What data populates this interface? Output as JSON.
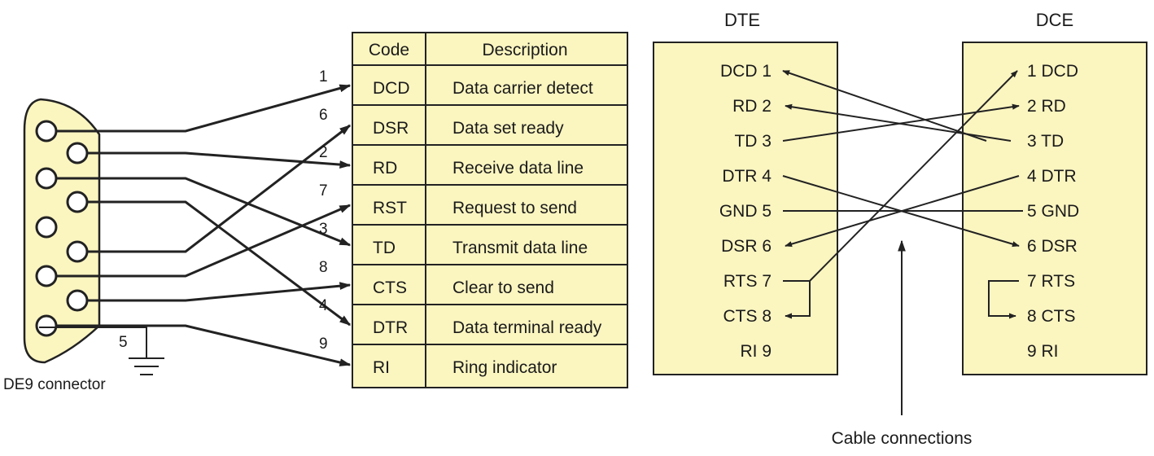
{
  "connector": {
    "label": "DE9 connector",
    "ground_pin": "5",
    "wire_numbers": [
      "1",
      "6",
      "2",
      "7",
      "3",
      "8",
      "4",
      "9"
    ]
  },
  "table": {
    "headers": {
      "code": "Code",
      "description": "Description"
    },
    "rows": [
      {
        "code": "DCD",
        "description": "Data carrier detect"
      },
      {
        "code": "DSR",
        "description": "Data set ready"
      },
      {
        "code": "RD",
        "description": "Receive data line"
      },
      {
        "code": "RST",
        "description": "Request to send"
      },
      {
        "code": "TD",
        "description": "Transmit data line"
      },
      {
        "code": "CTS",
        "description": "Clear to send"
      },
      {
        "code": "DTR",
        "description": "Data terminal ready"
      },
      {
        "code": "RI",
        "description": "Ring indicator"
      }
    ]
  },
  "dte": {
    "title": "DTE",
    "pins": [
      "DCD 1",
      "RD 2",
      "TD 3",
      "DTR 4",
      "GND 5",
      "DSR 6",
      "RTS 7",
      "CTS 8",
      "RI 9"
    ]
  },
  "dce": {
    "title": "DCE",
    "pins": [
      "1 DCD",
      "2 RD",
      "3 TD",
      "4 DTR",
      "5 GND",
      "6 DSR",
      "7 RTS",
      "8 CTS",
      "9 RI"
    ]
  },
  "cable_label": "Cable connections",
  "colors": {
    "fill": "#fbf5c0",
    "stroke": "#222222"
  }
}
